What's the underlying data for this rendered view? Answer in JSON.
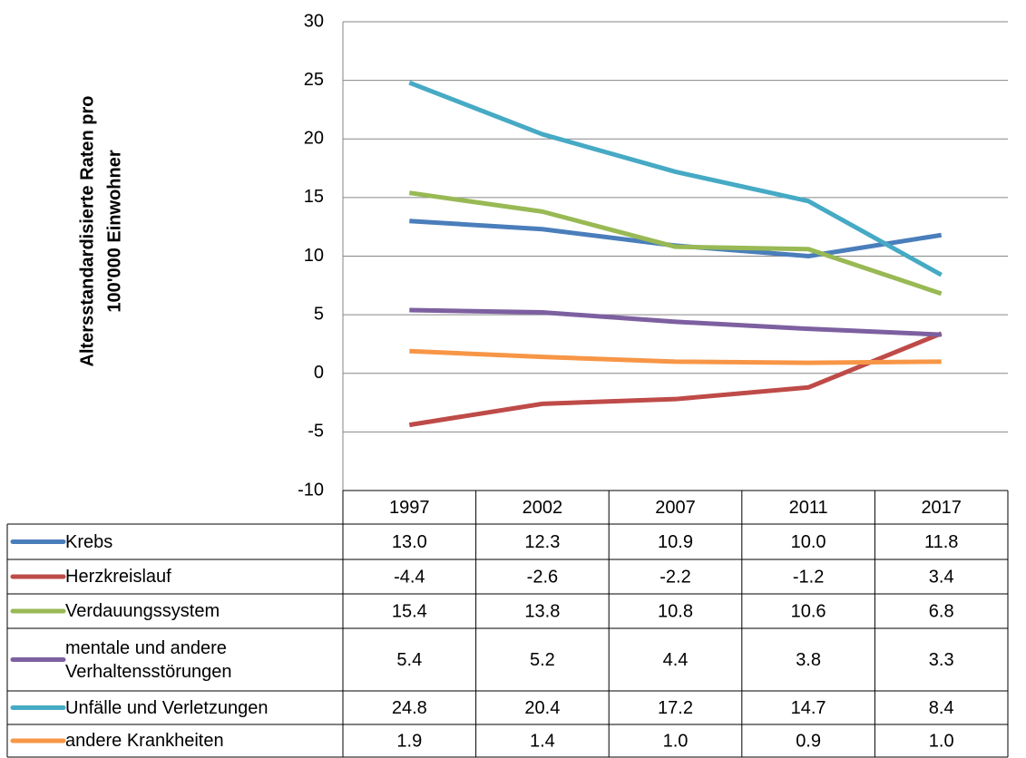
{
  "chart_data": {
    "type": "line",
    "ylabel": [
      "Altersstandardisierte Raten pro",
      "100'000 Einwohner"
    ],
    "categories": [
      "1997",
      "2002",
      "2007",
      "2011",
      "2017"
    ],
    "ylim": [
      -10,
      30
    ],
    "yticks": [
      -10,
      -5,
      0,
      5,
      10,
      15,
      20,
      25,
      30
    ],
    "grid": true,
    "series": [
      {
        "name": "Krebs",
        "color": "#4a7ebb",
        "values": [
          13,
          12.3,
          10.9,
          10,
          11.8
        ],
        "value_labels": [
          "13.0",
          "12.3",
          "10.9",
          "10.0",
          "11.8"
        ]
      },
      {
        "name": "Herzkreislauf",
        "color": "#be4b48",
        "values": [
          -4.4,
          -2.6,
          -2.2,
          -1.2,
          3.4
        ],
        "value_labels": [
          "-4.4",
          "-2.6",
          "-2.2",
          "-1.2",
          "3.4"
        ]
      },
      {
        "name": "Verdauungssystem",
        "color": "#98b954",
        "values": [
          15.4,
          13.8,
          10.8,
          10.6,
          6.8
        ],
        "value_labels": [
          "15.4",
          "13.8",
          "10.8",
          "10.6",
          "6.8"
        ]
      },
      {
        "name": "mentale und andere Verhaltensstörungen",
        "color": "#7d60a0",
        "values": [
          5.4,
          5.2,
          4.4,
          3.8,
          3.3
        ],
        "value_labels": [
          "5.4",
          "5.2",
          "4.4",
          "3.8",
          "3.3"
        ]
      },
      {
        "name": "Unfälle und Verletzungen",
        "color": "#46aac5",
        "values": [
          24.8,
          20.4,
          17.2,
          14.7,
          8.4
        ],
        "value_labels": [
          "24.8",
          "20.4",
          "17.2",
          "14.7",
          "8.4"
        ]
      },
      {
        "name": "andere Krankheiten",
        "color": "#f79646",
        "values": [
          1.9,
          1.4,
          1,
          0.9,
          1
        ],
        "value_labels": [
          "1.9",
          "1.4",
          "1.0",
          "0.9",
          "1.0"
        ]
      }
    ]
  }
}
